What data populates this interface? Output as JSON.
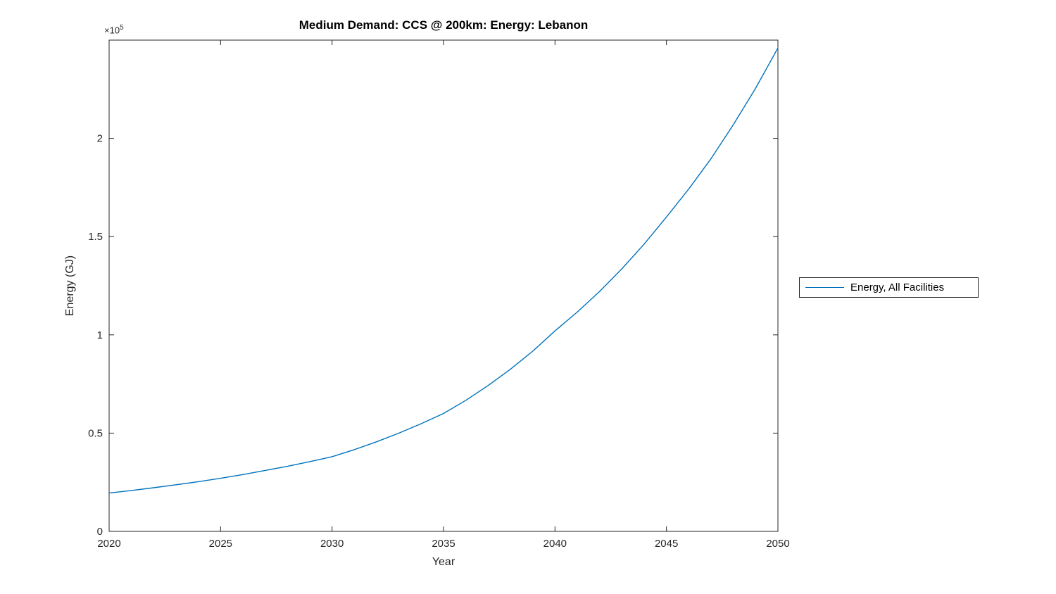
{
  "colors": {
    "line": "#0072BD",
    "axis": "#262626",
    "text": "#262626",
    "title": "#000000",
    "background": "#ffffff"
  },
  "chart_data": {
    "type": "line",
    "title": "Medium Demand: CCS @ 200km: Energy: Lebanon",
    "xlabel": "Year",
    "ylabel": "Energy (GJ)",
    "y_exponent": {
      "base": "×10",
      "power": "5"
    },
    "xlim": [
      2020,
      2050
    ],
    "ylim": [
      0,
      250000
    ],
    "xticks": [
      {
        "value": 2020,
        "label": "2020"
      },
      {
        "value": 2025,
        "label": "2025"
      },
      {
        "value": 2030,
        "label": "2030"
      },
      {
        "value": 2035,
        "label": "2035"
      },
      {
        "value": 2040,
        "label": "2040"
      },
      {
        "value": 2045,
        "label": "2045"
      },
      {
        "value": 2050,
        "label": "2050"
      }
    ],
    "yticks": [
      {
        "value": 0,
        "label": "0"
      },
      {
        "value": 50000,
        "label": "0.5"
      },
      {
        "value": 100000,
        "label": "1"
      },
      {
        "value": 150000,
        "label": "1.5"
      },
      {
        "value": 200000,
        "label": "2"
      }
    ],
    "grid": false,
    "legend": {
      "position": "right-outside",
      "entries": [
        "Energy, All Facilities"
      ]
    },
    "series": [
      {
        "name": "Energy, All Facilities",
        "color": "#0072BD",
        "x": [
          2020,
          2021,
          2022,
          2023,
          2024,
          2025,
          2026,
          2027,
          2028,
          2029,
          2030,
          2031,
          2032,
          2033,
          2034,
          2035,
          2036,
          2037,
          2038,
          2039,
          2040,
          2041,
          2042,
          2043,
          2044,
          2045,
          2046,
          2047,
          2048,
          2049,
          2050
        ],
        "y": [
          19500,
          20800,
          22200,
          23700,
          25300,
          27000,
          28900,
          31000,
          33100,
          35500,
          38000,
          41600,
          45600,
          50000,
          54800,
          60000,
          66700,
          74200,
          82500,
          91700,
          102000,
          111600,
          122100,
          133600,
          146200,
          160000,
          174200,
          189700,
          207000,
          225500,
          246000
        ]
      }
    ]
  }
}
